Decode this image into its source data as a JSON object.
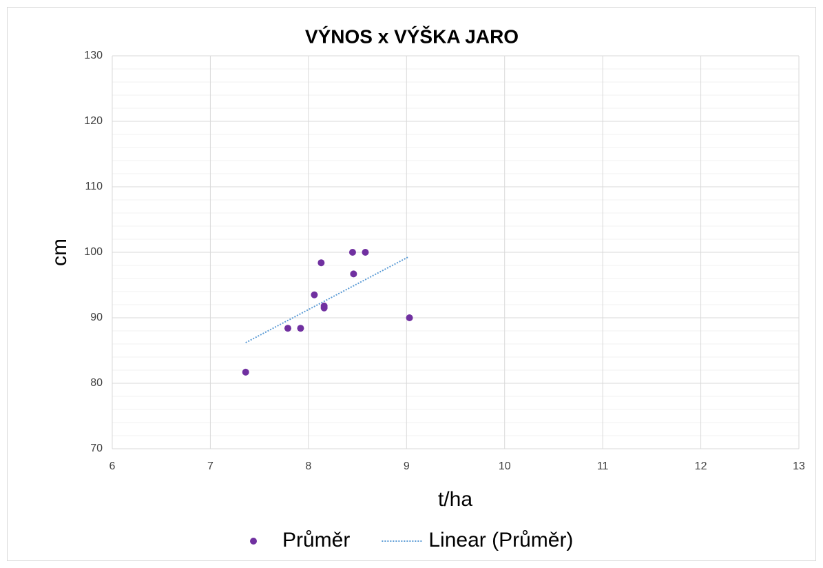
{
  "chart_data": {
    "type": "scatter",
    "title": "VÝNOS x VÝŠKA JARO",
    "x_label": "t/ha",
    "y_label": "cm",
    "series": [
      {
        "name": "Průměr",
        "color": "#7030a0",
        "x": [
          7.36,
          7.79,
          7.92,
          8.06,
          8.13,
          8.16,
          8.16,
          8.45,
          8.46,
          8.58,
          9.03
        ],
        "values": [
          81.7,
          88.4,
          88.4,
          93.5,
          98.4,
          91.8,
          91.5,
          100,
          96.7,
          100,
          90
        ]
      },
      {
        "name": "Linear (Průměr)",
        "color": "#5b9bd5",
        "kind": "trendline",
        "x": [
          7.36,
          9.02
        ],
        "values": [
          86.2,
          99.3
        ]
      }
    ],
    "xlim": [
      6,
      13
    ],
    "xticks": [
      6,
      7,
      8,
      9,
      10,
      11,
      12,
      13
    ],
    "ylim": [
      70,
      130
    ],
    "yticks": [
      70,
      80,
      90,
      100,
      110,
      120,
      130
    ],
    "yminorticks": [
      72,
      74,
      76,
      78,
      82,
      84,
      86,
      88,
      92,
      94,
      96,
      98,
      102,
      104,
      106,
      108,
      112,
      114,
      116,
      118,
      122,
      124,
      126,
      128
    ],
    "grid": true,
    "legend": "bottom"
  }
}
